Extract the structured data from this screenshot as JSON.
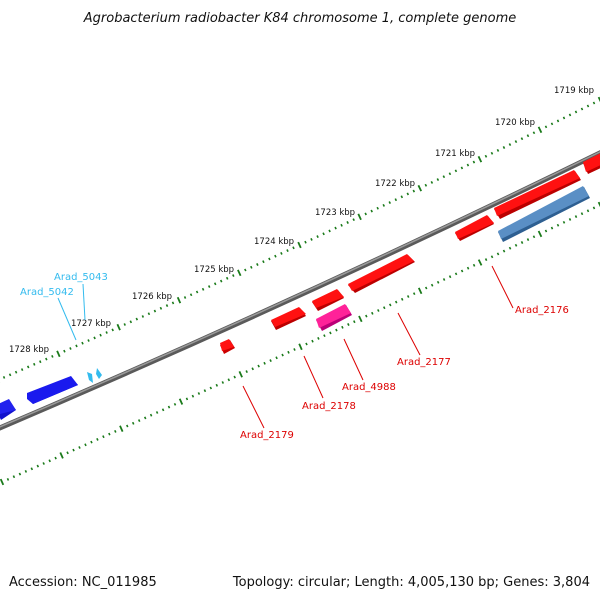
{
  "title": "Agrobacterium radiobacter K84 chromosome 1, complete genome",
  "footer": {
    "accession": "Accession: NC_011985",
    "topology": "Topology: circular; Length: 4,005,130 bp; Genes: 3,804"
  },
  "kbp_ticks": [
    "1719 kbp",
    "1720 kbp",
    "1721 kbp",
    "1722 kbp",
    "1723 kbp",
    "1724 kbp",
    "1725 kbp",
    "1726 kbp",
    "1727 kbp",
    "1728 kbp"
  ],
  "colors": {
    "backbone": "#777777",
    "tick_green": "#1a7a1a",
    "gene_red": "#ee0000",
    "gene_blue": "#0000dd",
    "gene_steel": "#4a7fb5",
    "gene_magenta": "#ee1199",
    "gene_cyan": "#33bbee",
    "label_red": "#dd0000",
    "label_cyan": "#33bbee"
  },
  "gene_labels": {
    "arad_5043": "Arad_5043",
    "arad_5042": "Arad_5042",
    "arad_2176": "Arad_2176",
    "arad_2177": "Arad_2177",
    "arad_4988": "Arad_4988",
    "arad_2178": "Arad_2178",
    "arad_2179": "Arad_2179"
  }
}
